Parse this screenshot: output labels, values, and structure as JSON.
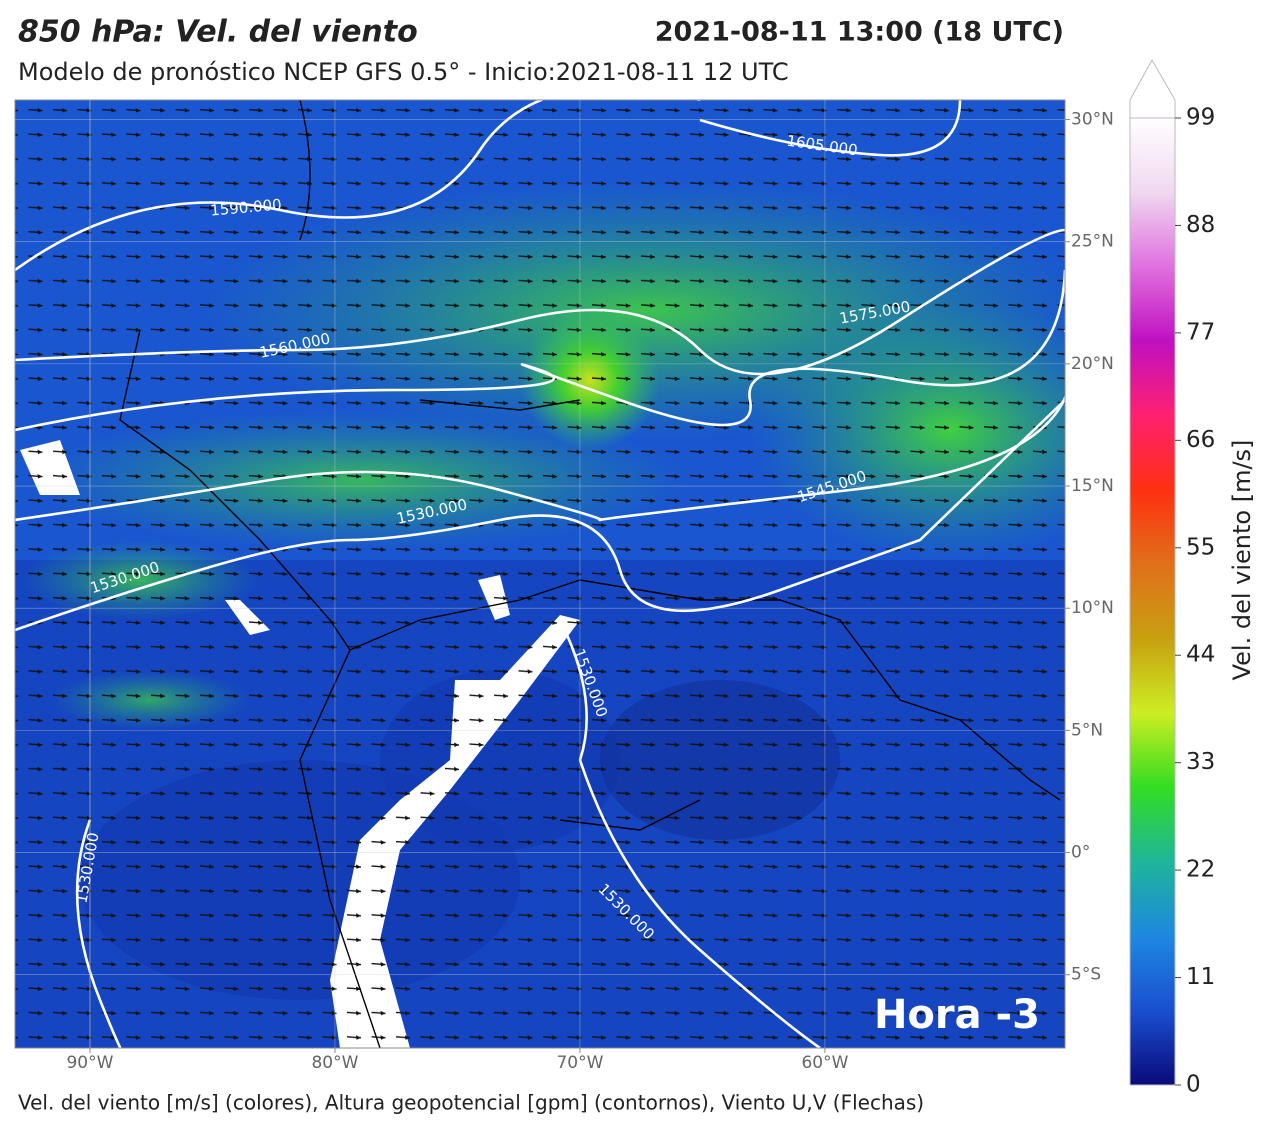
{
  "header": {
    "title": "850 hPa: Vel. del viento",
    "date": "2021-08-11 13:00 (18 UTC)",
    "subtitle": "Modelo de pronóstico NCEP GFS 0.5° - Inicio:2021-08-11 12 UTC"
  },
  "map": {
    "lonlim": [
      -93.06,
      -50.2
    ],
    "latlim": [
      -8.0,
      30.8
    ],
    "lon_ticks": [
      {
        "value": -90,
        "label": "90°W"
      },
      {
        "value": -80,
        "label": "80°W"
      },
      {
        "value": -70,
        "label": "70°W"
      },
      {
        "value": -60,
        "label": "60°W"
      }
    ],
    "lat_ticks": [
      {
        "value": 30,
        "label": "30°N"
      },
      {
        "value": 25,
        "label": "25°N"
      },
      {
        "value": 20,
        "label": "20°N"
      },
      {
        "value": 15,
        "label": "15°N"
      },
      {
        "value": 10,
        "label": "10°N"
      },
      {
        "value": 5,
        "label": "5°N"
      },
      {
        "value": 0,
        "label": "0°"
      },
      {
        "value": -5,
        "label": "5°S"
      }
    ],
    "contour_labels": [
      "1605.000",
      "1590.000",
      "1575.000",
      "1560.000",
      "1545.000",
      "1530.000",
      "1530.000",
      "1530.000",
      "1530.000",
      "1530.000"
    ],
    "overlay_label": "Hora -3"
  },
  "colorbar": {
    "label": "Vel. del viento [m/s]",
    "range": [
      0,
      99
    ],
    "ticks": [
      0,
      11,
      22,
      33,
      44,
      55,
      66,
      77,
      88,
      99
    ],
    "colors": [
      "#0a0a7a",
      "#1a4fd0",
      "#1e88e0",
      "#1fb59a",
      "#33dd22",
      "#ccee22",
      "#c8a010",
      "#e0701a",
      "#ff3010",
      "#ff2070",
      "#c010c0",
      "#e070e0",
      "#f0d8f0",
      "#ffffff"
    ]
  },
  "footer": "Vel. del viento [m/s] (colores), Altura geopotencial [gpm] (contornos), Viento U,V (Flechas)"
}
